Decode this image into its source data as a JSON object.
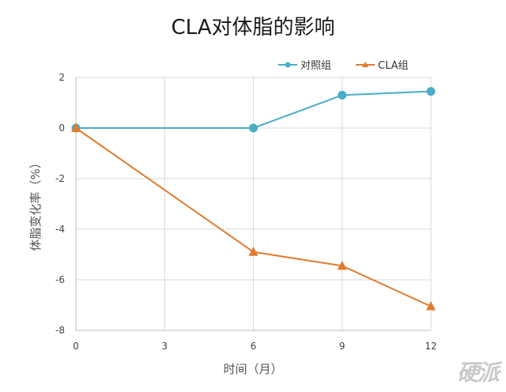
{
  "chart_data": {
    "type": "line",
    "title": "CLA对体脂的影响",
    "xlabel": "时间（月）",
    "ylabel": "体脂变化率（%）",
    "x": [
      0,
      6,
      9,
      12
    ],
    "xticks": [
      0,
      3,
      6,
      9,
      12
    ],
    "yticks": [
      2,
      0,
      -2,
      -4,
      -6,
      -8
    ],
    "xlim": [
      0,
      12
    ],
    "ylim": [
      -8,
      2
    ],
    "grid": true,
    "legend_position": "top-right",
    "series": [
      {
        "name": "对照组",
        "values": [
          0,
          0,
          1.3,
          1.45
        ],
        "color": "#4bacc6",
        "marker": "circle"
      },
      {
        "name": "CLA组",
        "values": [
          0,
          -4.9,
          -5.45,
          -7.05
        ],
        "color": "#e07b2e",
        "marker": "triangle"
      }
    ]
  },
  "watermark": "硬派"
}
